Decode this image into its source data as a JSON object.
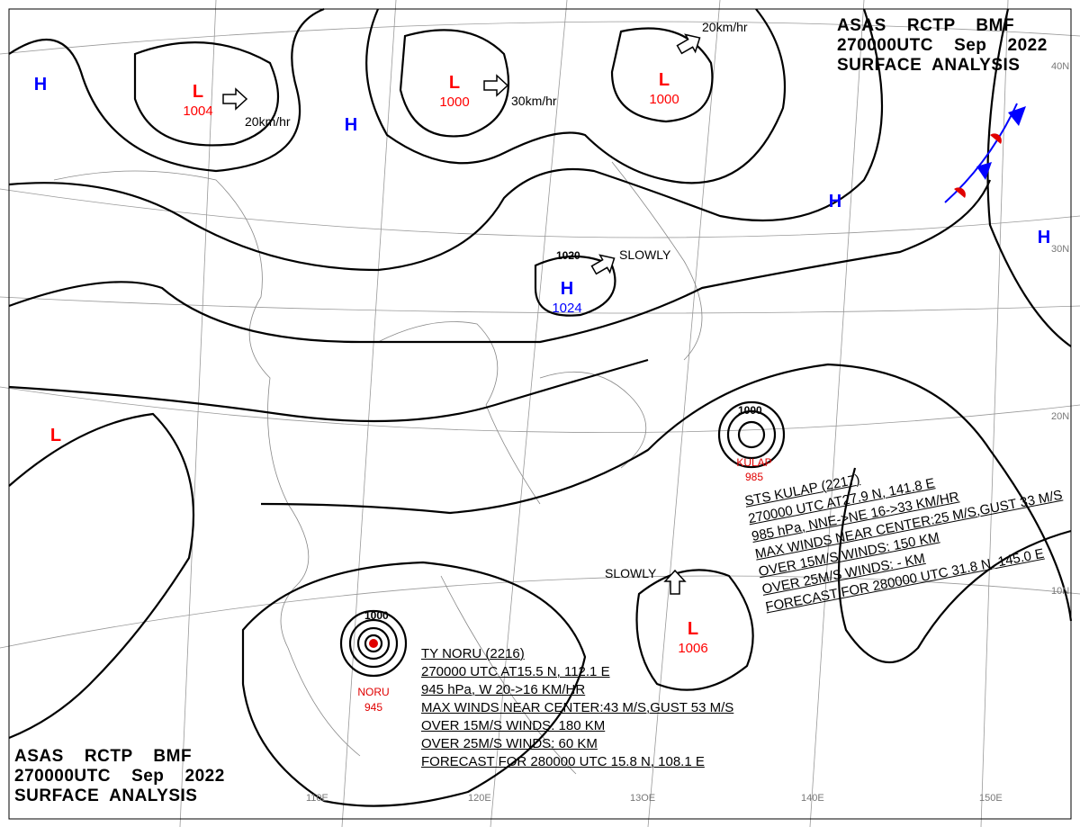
{
  "header_top": {
    "line1": "ASAS    RCTP    BMF",
    "line2": "270000UTC    Sep    2022",
    "line3": "SURFACE  ANALYSIS"
  },
  "header_bottom": {
    "line1": "ASAS    RCTP    BMF",
    "line2": "270000UTC    Sep    2022",
    "line3": "SURFACE  ANALYSIS"
  },
  "grid_labels": {
    "lat": [
      "40N",
      "30N",
      "20N",
      "10N"
    ],
    "lon": [
      "110E",
      "120E",
      "13OE",
      "140E",
      "150E"
    ]
  },
  "colors": {
    "high": "#0000ff",
    "low": "#ff0000",
    "isobar": "#000000",
    "station": "#555555"
  },
  "pressure_centers": [
    {
      "type": "H",
      "value": ""
    },
    {
      "type": "L",
      "value": "1004"
    },
    {
      "type": "H",
      "value": ""
    },
    {
      "type": "L",
      "value": "1000"
    },
    {
      "type": "L",
      "value": "1000"
    },
    {
      "type": "H",
      "value": ""
    },
    {
      "type": "H",
      "value": ""
    },
    {
      "type": "H",
      "value": "1024"
    },
    {
      "type": "L",
      "value": ""
    },
    {
      "type": "L",
      "value": "1006"
    }
  ],
  "isobar_labels": [
    "1020",
    "1000",
    "1000"
  ],
  "motion_labels": [
    "20km/hr",
    "30km/hr",
    "20km/hr",
    "SLOWLY",
    "SLOWLY"
  ],
  "typhoons": [
    {
      "name": "KULAP",
      "pressure": "985",
      "lines": [
        "STS  KULAP  (2217)",
        "270000 UTC  AT27.9 N, 141.8 E",
        "985 hPa, NNE->NE  16->33 KM/HR",
        "MAX WINDS NEAR CENTER:25 M/S,GUST 33 M/S",
        "OVER 15M/S WINDS: 150 KM",
        "OVER 25M/S WINDS: - KM",
        "FORECAST FOR 280000 UTC 31.8 N, 145.0 E"
      ]
    },
    {
      "name": "NORU",
      "pressure": "945",
      "lines": [
        "TY  NORU  (2216)",
        "270000 UTC  AT15.5 N, 112.1 E",
        "945 hPa, W  20->16 KM/HR",
        "MAX WINDS NEAR CENTER:43 M/S,GUST 53 M/S",
        "OVER 15M/S WINDS: 180 KM",
        "OVER 25M/S WINDS: 60 KM",
        "FORECAST FOR 280000 UTC 15.8 N, 108.1 E"
      ]
    }
  ]
}
